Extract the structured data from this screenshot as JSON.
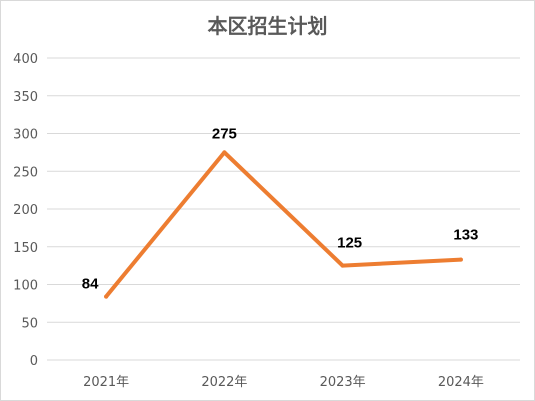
{
  "chart_data": {
    "type": "line",
    "title": "本区招生计划",
    "categories": [
      "2021年",
      "2022年",
      "2023年",
      "2024年"
    ],
    "series": [
      {
        "values": [
          84,
          275,
          125,
          133
        ]
      }
    ],
    "data_labels": [
      "84",
      "275",
      "125",
      "133"
    ],
    "y_ticks": [
      "0",
      "50",
      "100",
      "150",
      "200",
      "250",
      "300",
      "350",
      "400"
    ],
    "ylim": [
      0,
      400
    ],
    "xlabel": "",
    "ylabel": "",
    "grid": true,
    "legend": "none",
    "line_color": "#ED7D31",
    "grid_color": "#D9D9D9"
  }
}
